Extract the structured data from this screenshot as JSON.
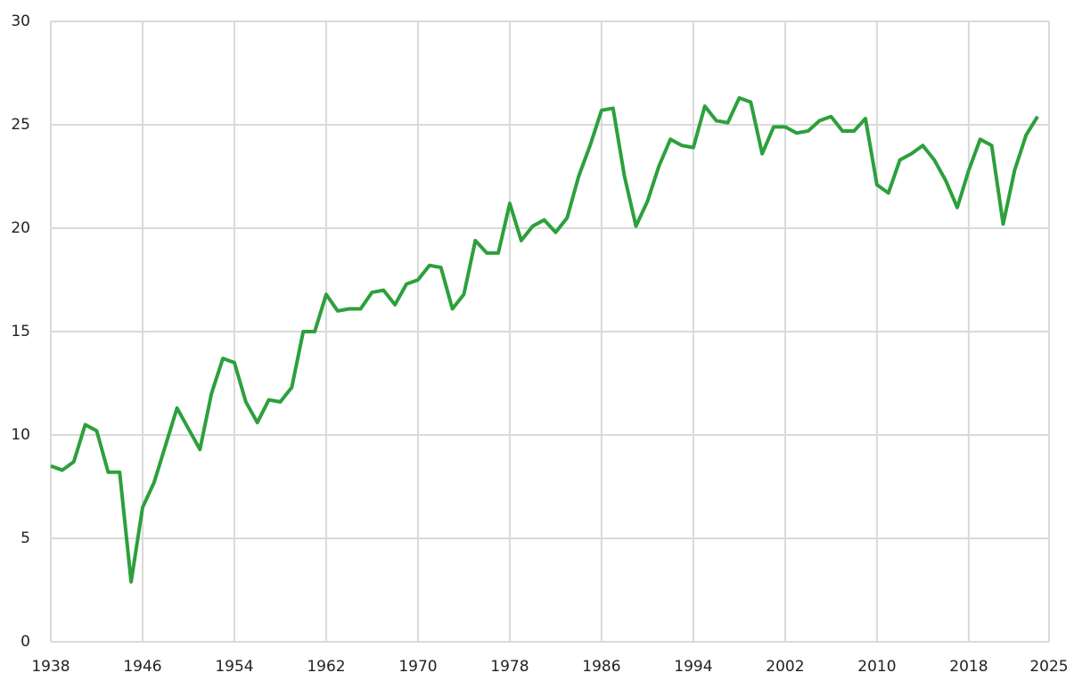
{
  "chart_data": {
    "type": "line",
    "x": [
      1938,
      1939,
      1940,
      1941,
      1942,
      1943,
      1944,
      1945,
      1946,
      1947,
      1948,
      1949,
      1950,
      1951,
      1952,
      1953,
      1954,
      1955,
      1956,
      1957,
      1958,
      1959,
      1960,
      1961,
      1962,
      1963,
      1964,
      1965,
      1966,
      1967,
      1968,
      1969,
      1970,
      1971,
      1972,
      1973,
      1974,
      1975,
      1976,
      1977,
      1978,
      1979,
      1980,
      1981,
      1982,
      1983,
      1984,
      1985,
      1986,
      1987,
      1988,
      1989,
      1990,
      1991,
      1992,
      1993,
      1994,
      1995,
      1996,
      1997,
      1998,
      1999,
      2000,
      2001,
      2002,
      2003,
      2004,
      2005,
      2006,
      2007,
      2008,
      2009,
      2010,
      2011,
      2012,
      2013,
      2014,
      2015,
      2016,
      2017,
      2018,
      2019,
      2020,
      2021,
      2022,
      2023,
      2024
    ],
    "series": [
      {
        "color": "#2ca03c",
        "values": [
          8.5,
          8.3,
          8.7,
          10.5,
          10.2,
          8.2,
          8.2,
          2.9,
          6.5,
          7.7,
          9.5,
          11.3,
          10.3,
          9.3,
          12.0,
          13.7,
          13.5,
          11.6,
          10.6,
          11.7,
          11.6,
          12.3,
          15.0,
          15.0,
          16.8,
          16.0,
          16.1,
          16.1,
          16.9,
          17.0,
          16.3,
          17.3,
          17.5,
          18.2,
          18.1,
          16.1,
          16.8,
          19.4,
          18.8,
          18.8,
          21.2,
          19.4,
          20.1,
          20.4,
          19.8,
          20.5,
          22.5,
          24.0,
          25.7,
          25.8,
          22.5,
          20.1,
          21.3,
          23.0,
          24.3,
          24.0,
          23.9,
          25.9,
          25.2,
          25.1,
          26.3,
          26.1,
          23.6,
          24.9,
          24.9,
          24.6,
          24.7,
          25.2,
          25.4,
          24.7,
          24.7,
          25.3,
          22.1,
          21.7,
          23.3,
          23.6,
          24.0,
          23.3,
          22.3,
          21.0,
          22.8,
          24.3,
          24.0,
          20.2,
          22.8,
          24.5,
          25.4
        ]
      }
    ],
    "xlim": [
      1938,
      2025
    ],
    "xticks": [
      1938,
      1946,
      1954,
      1962,
      1970,
      1978,
      1986,
      1994,
      2002,
      2010,
      2018,
      2025
    ],
    "ylim": [
      0,
      30
    ],
    "yticks": [
      0,
      5,
      10,
      15,
      20,
      25,
      30
    ],
    "grid": true
  }
}
